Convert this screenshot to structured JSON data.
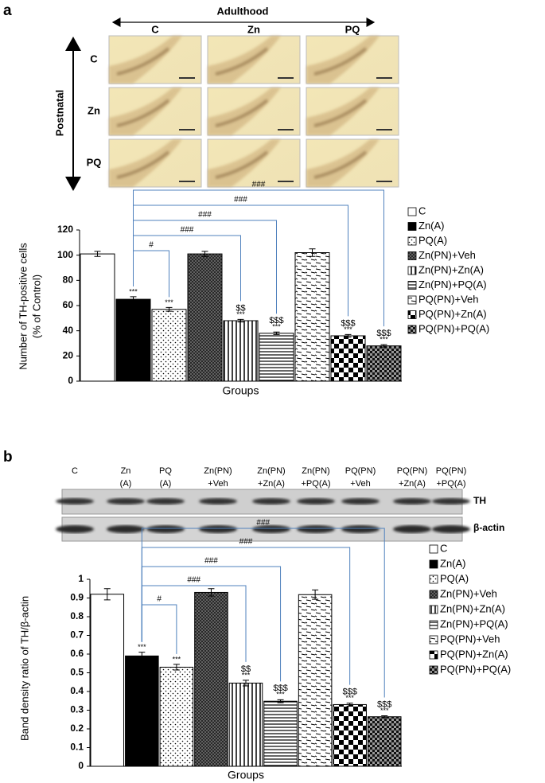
{
  "panel_a": {
    "label": "a",
    "adulthood": "Adulthood",
    "columns": [
      "C",
      "Zn",
      "PQ"
    ],
    "postnatal": "Postnatal",
    "rows": [
      "C",
      "Zn",
      "PQ"
    ]
  },
  "panel_b": {
    "label": "b",
    "lanes": [
      [
        "C"
      ],
      [
        "Zn",
        "(A)"
      ],
      [
        "PQ",
        "(A)"
      ],
      [
        "Zn(PN)",
        "+Veh"
      ],
      [
        "Zn(PN)",
        "+Zn(A)"
      ],
      [
        "Zn(PN)",
        "+PQ(A)"
      ],
      [
        "PQ(PN)",
        "+Veh"
      ],
      [
        "PQ(PN)",
        "+Zn(A)"
      ],
      [
        "PQ(PN)",
        "+PQ(A)"
      ]
    ],
    "bands": [
      "TH",
      "β-actin"
    ]
  },
  "chart_data": [
    {
      "type": "bar",
      "ylabel": [
        "Number of TH-positive cells",
        "(% of Control)"
      ],
      "xlabel": "Groups",
      "categories": [
        "C",
        "Zn(A)",
        "PQ(A)",
        "Zn(PN)+Veh",
        "Zn(PN)+Zn(A)",
        "Zn(PN)+PQ(A)",
        "PQ(PN)+Veh",
        "PQ(PN)+Zn(A)",
        "PQ(PN)+PQ(A)"
      ],
      "values": [
        101,
        65,
        57,
        101,
        48,
        38,
        102,
        36,
        28
      ],
      "errors": [
        2,
        2,
        1.5,
        2,
        1,
        1,
        3,
        1,
        1
      ],
      "fills": [
        "white",
        "black",
        "dots",
        "crosshatch",
        "vlines",
        "hlines",
        "dashes",
        "checker",
        "checkerfine"
      ],
      "annotations": [
        null,
        [
          "***"
        ],
        [
          "***"
        ],
        null,
        [
          "$$",
          "***"
        ],
        [
          "$$$",
          "***"
        ],
        null,
        [
          "$$$",
          "***"
        ],
        [
          "$$$",
          "***"
        ]
      ],
      "brackets": [
        {
          "from": 1,
          "to": 2,
          "label": "#"
        },
        {
          "from": 1,
          "to": 4,
          "label": "###"
        },
        {
          "from": 1,
          "to": 5,
          "label": "###"
        },
        {
          "from": 1,
          "to": 7,
          "label": "###"
        },
        {
          "from": 1,
          "to": 8,
          "label": "###"
        }
      ],
      "bracket_color": "#4f81bd",
      "ylim": [
        0,
        120
      ],
      "yticks": [
        0,
        20,
        40,
        60,
        80,
        100,
        120
      ]
    },
    {
      "type": "bar",
      "ylabel": [
        "Band density ratio of TH/β-actin"
      ],
      "xlabel": "Groups",
      "categories": [
        "C",
        "Zn(A)",
        "PQ(A)",
        "Zn(PN)+Veh",
        "Zn(PN)+Zn(A)",
        "Zn(PN)+PQ(A)",
        "PQ(PN)+Veh",
        "PQ(PN)+Zn(A)",
        "PQ(PN)+PQ(A)"
      ],
      "values": [
        0.92,
        0.59,
        0.53,
        0.93,
        0.445,
        0.348,
        0.918,
        0.33,
        0.265
      ],
      "errors": [
        0.03,
        0.02,
        0.015,
        0.02,
        0.015,
        0.008,
        0.025,
        0.008,
        0.005
      ],
      "fills": [
        "white",
        "black",
        "dots",
        "crosshatch",
        "vlines",
        "hlines",
        "dashes",
        "checker",
        "checkerfine"
      ],
      "annotations": [
        null,
        [
          "***"
        ],
        [
          "***"
        ],
        null,
        [
          "$$",
          "***"
        ],
        [
          "$$$",
          "***"
        ],
        null,
        [
          "$$$",
          "***"
        ],
        [
          "$$$",
          "***"
        ]
      ],
      "brackets": [
        {
          "from": 1,
          "to": 2,
          "label": "#"
        },
        {
          "from": 1,
          "to": 4,
          "label": "###"
        },
        {
          "from": 1,
          "to": 5,
          "label": "###"
        },
        {
          "from": 1,
          "to": 7,
          "label": "###"
        },
        {
          "from": 1,
          "to": 8,
          "label": "###"
        }
      ],
      "bracket_color": "#4f81bd",
      "ylim": [
        0,
        1
      ],
      "yticks": [
        0,
        0.1,
        0.2,
        0.3,
        0.4,
        0.5,
        0.6,
        0.7,
        0.8,
        0.9,
        1
      ]
    }
  ]
}
